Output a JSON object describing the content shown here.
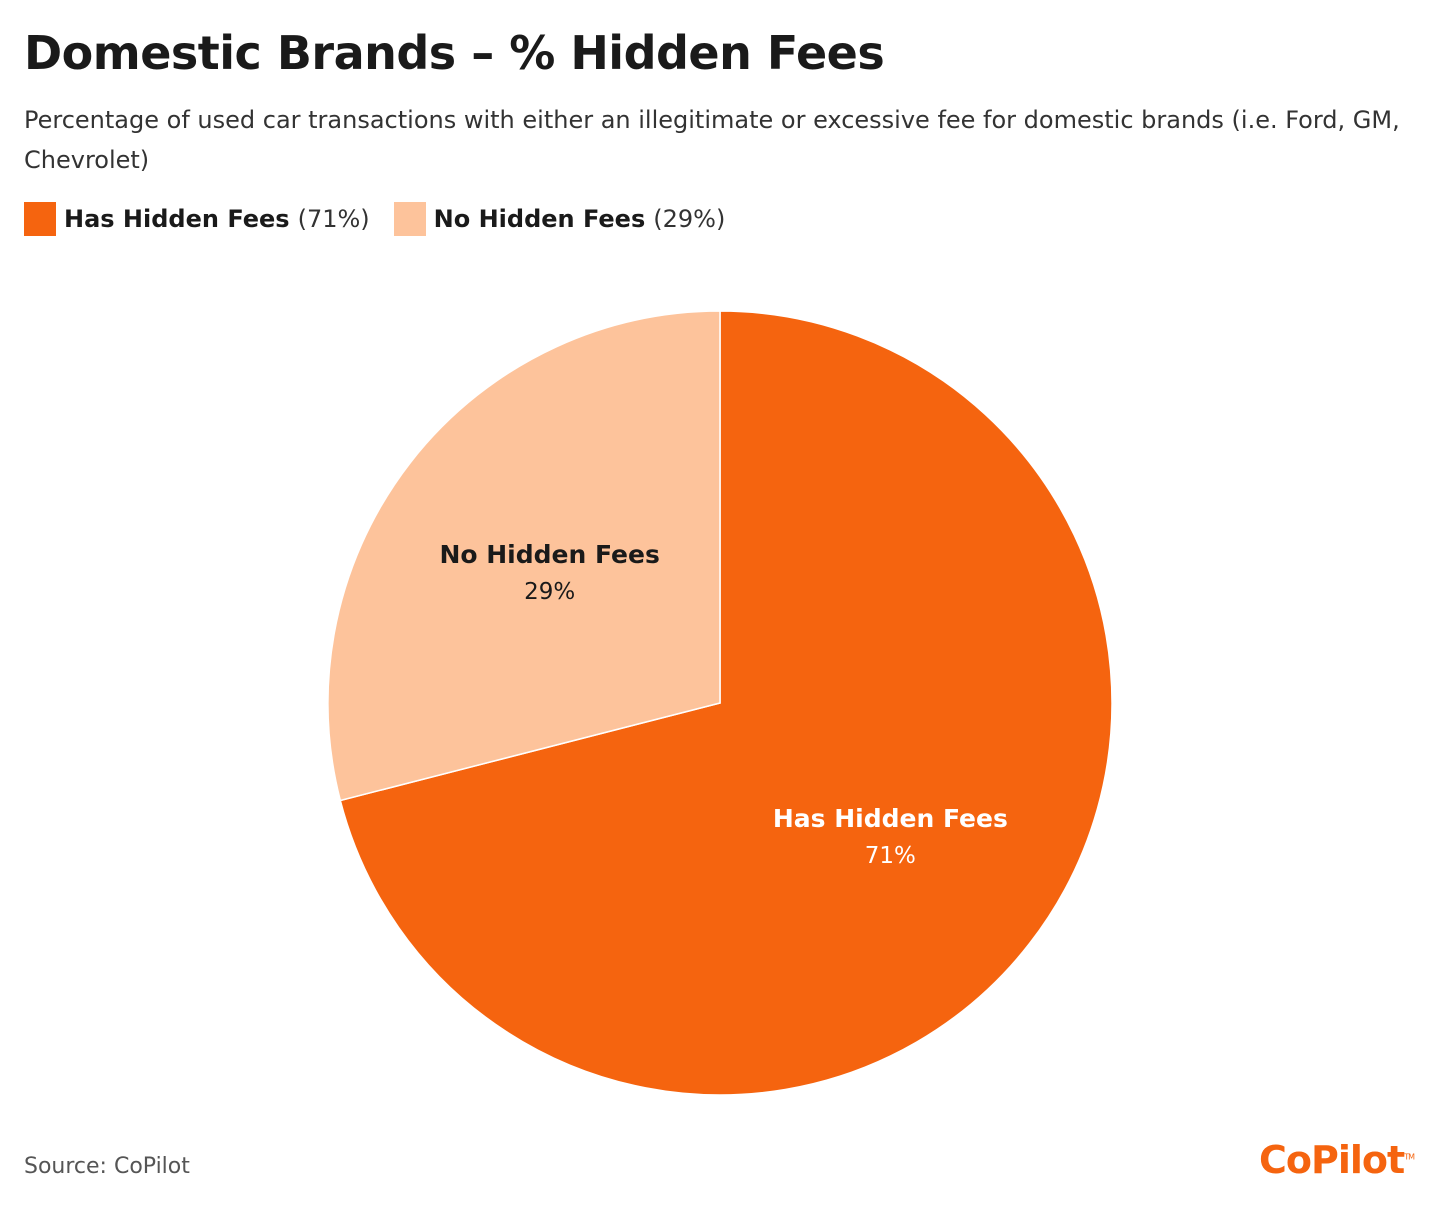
{
  "chart_data": {
    "type": "pie",
    "title": "Domestic Brands – % Hidden Fees",
    "subtitle": "Percentage of used car transactions with either an illegitimate or excessive fee for domestic brands (i.e. Ford, GM, Chevrolet)",
    "legend_placement": "top-left",
    "slices": [
      {
        "name": "Has Hidden Fees",
        "value": 71,
        "label": "71%",
        "legend_pct": "(71%)",
        "color": "#F5640F",
        "text_color": "#ffffff"
      },
      {
        "name": "No Hidden Fees",
        "value": 29,
        "label": "29%",
        "legend_pct": "(29%)",
        "color": "#FDC39B",
        "text_color": "#1a1a1a"
      }
    ]
  },
  "footer": {
    "source": "Source: CoPilot",
    "logo": "CoPilot",
    "logo_tm": "TM"
  }
}
